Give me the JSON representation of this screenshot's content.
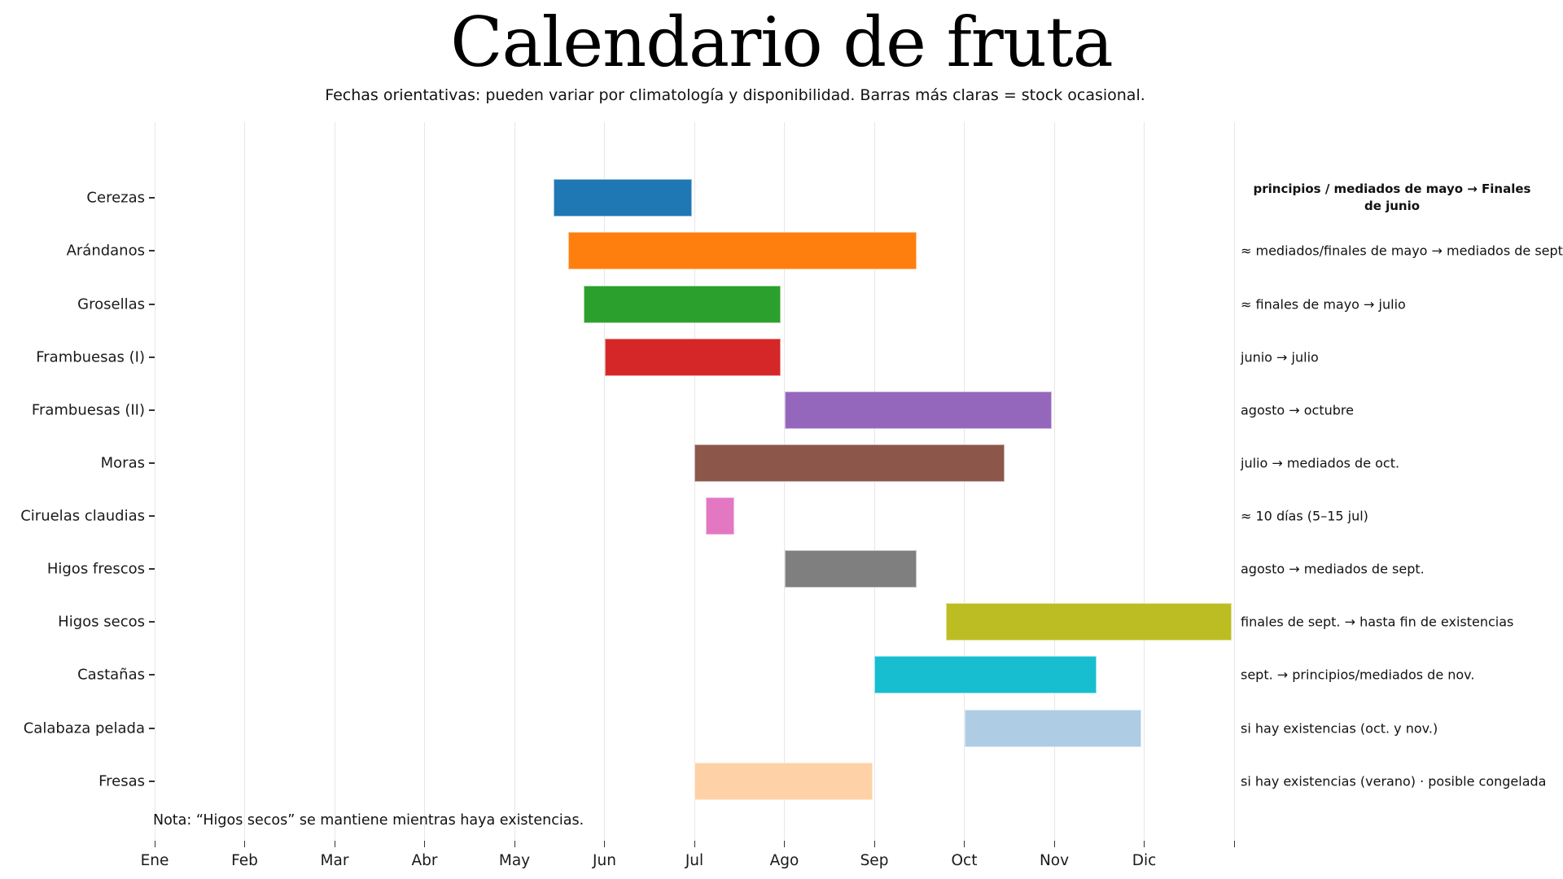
{
  "title": "Calendario de fruta",
  "subtitle": "Fechas orientativas: pueden variar por climatología y disponibilidad. Barras más claras = stock ocasional.",
  "note": "Nota: “Higos secos” se mantiene mientras haya existencias.",
  "chart_data": {
    "type": "bar",
    "variant": "gantt-horizontal",
    "title": "Calendario de fruta",
    "x_unit": "months (0 = 1 Ene, 12 = 31 Dic)",
    "x_range": [
      0,
      12
    ],
    "x_tick_labels": [
      "Ene",
      "Feb",
      "Mar",
      "Abr",
      "May",
      "Jun",
      "Jul",
      "Ago",
      "Sep",
      "Oct",
      "Nov",
      "Dic"
    ],
    "grid": "vertical-monthly",
    "legend": "none",
    "rows": [
      {
        "label": "Cerezas",
        "start": 4.43,
        "end": 5.97,
        "color": "#1f77b4",
        "light": false,
        "annotation": "principios / mediados de mayo → Finales de junio",
        "annotation_bold": true
      },
      {
        "label": "Arándanos",
        "start": 4.6,
        "end": 8.47,
        "color": "#ff7f0e",
        "light": false,
        "annotation": "≈ mediados/finales de mayo → mediados de sept.",
        "annotation_bold": false
      },
      {
        "label": "Grosellas",
        "start": 4.77,
        "end": 6.96,
        "color": "#2ca02c",
        "light": false,
        "annotation": "≈ finales de mayo → julio",
        "annotation_bold": false
      },
      {
        "label": "Frambuesas (I)",
        "start": 5.0,
        "end": 6.96,
        "color": "#d62728",
        "light": false,
        "annotation": "junio → julio",
        "annotation_bold": false
      },
      {
        "label": "Frambuesas (II)",
        "start": 7.0,
        "end": 9.97,
        "color": "#9467bd",
        "light": false,
        "annotation": "agosto → octubre",
        "annotation_bold": false
      },
      {
        "label": "Moras",
        "start": 6.0,
        "end": 9.45,
        "color": "#8c564b",
        "light": false,
        "annotation": "julio → mediados de oct.",
        "annotation_bold": false
      },
      {
        "label": "Ciruelas claudias",
        "start": 6.13,
        "end": 6.44,
        "color": "#e377c2",
        "light": false,
        "annotation": "≈ 10 días (5–15 jul)",
        "annotation_bold": false
      },
      {
        "label": "Higos frescos",
        "start": 7.0,
        "end": 8.47,
        "color": "#7f7f7f",
        "light": false,
        "annotation": "agosto → mediados de sept.",
        "annotation_bold": false
      },
      {
        "label": "Higos secos",
        "start": 8.8,
        "end": 11.97,
        "color": "#bcbd22",
        "light": false,
        "annotation": "finales de sept. → hasta fin de existencias",
        "annotation_bold": false
      },
      {
        "label": "Castañas",
        "start": 8.0,
        "end": 10.47,
        "color": "#17becf",
        "light": false,
        "annotation": "sept. → principios/mediados de nov.",
        "annotation_bold": false
      },
      {
        "label": "Calabaza pelada",
        "start": 9.0,
        "end": 10.97,
        "color": "#aecde4",
        "light": true,
        "annotation": "si hay existencias (oct. y nov.)",
        "annotation_bold": false
      },
      {
        "label": "Fresas",
        "start": 6.0,
        "end": 7.98,
        "color": "#fed2a6",
        "light": true,
        "annotation": "si hay existencias (verano) · posible congelada",
        "annotation_bold": false
      }
    ]
  }
}
